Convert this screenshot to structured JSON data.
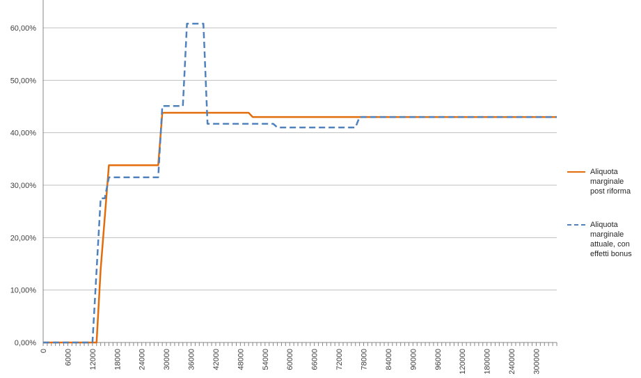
{
  "colors": {
    "post_riforma": "#E36C0A",
    "attuale": "#4F81BD",
    "grid": "#BFBFBF",
    "axis": "#868686"
  },
  "chart_data": {
    "type": "line",
    "title": "",
    "xlabel": "",
    "ylabel": "",
    "ylim": [
      0,
      0.6
    ],
    "y_ticks": [
      "0,00%",
      "10,00%",
      "20,00%",
      "30,00%",
      "40,00%",
      "50,00%",
      "60,00%"
    ],
    "y_tick_values": [
      0,
      0.1,
      0.2,
      0.3,
      0.4,
      0.5,
      0.6
    ],
    "x_tick_labels": [
      "0",
      "6000",
      "12000",
      "18000",
      "24000",
      "30000",
      "36000",
      "42000",
      "48000",
      "54000",
      "60000",
      "66000",
      "72000",
      "78000",
      "84000",
      "90000",
      "96000",
      "120000",
      "180000",
      "240000",
      "300000"
    ],
    "x_category_count": 126,
    "x_label_every": 6,
    "grid": true,
    "legend_position": "right",
    "series": [
      {
        "name": "Aliquota marginale post riforma",
        "style": "solid",
        "points": [
          [
            0,
            0
          ],
          [
            13,
            0
          ],
          [
            14,
            0.14
          ],
          [
            16,
            0.338
          ],
          [
            28,
            0.338
          ],
          [
            29,
            0.438
          ],
          [
            50,
            0.438
          ],
          [
            51,
            0.43
          ],
          [
            125,
            0.43
          ]
        ]
      },
      {
        "name": "Aliquota marginale attuale, con effetti bonus",
        "style": "dashed",
        "points": [
          [
            0,
            0
          ],
          [
            12,
            0
          ],
          [
            14,
            0.275
          ],
          [
            15,
            0.275
          ],
          [
            16,
            0.315
          ],
          [
            28,
            0.315
          ],
          [
            29,
            0.451
          ],
          [
            34,
            0.451
          ],
          [
            35,
            0.608
          ],
          [
            39,
            0.608
          ],
          [
            40,
            0.417
          ],
          [
            56,
            0.417
          ],
          [
            57,
            0.41
          ],
          [
            76,
            0.41
          ],
          [
            77,
            0.43
          ],
          [
            125,
            0.43
          ]
        ]
      }
    ]
  }
}
